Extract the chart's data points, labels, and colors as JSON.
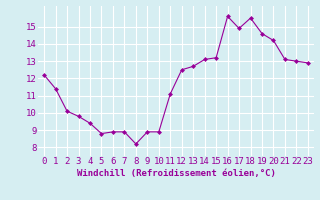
{
  "x": [
    0,
    1,
    2,
    3,
    4,
    5,
    6,
    7,
    8,
    9,
    10,
    11,
    12,
    13,
    14,
    15,
    16,
    17,
    18,
    19,
    20,
    21,
    22,
    23
  ],
  "y": [
    12.2,
    11.4,
    10.1,
    9.8,
    9.4,
    8.8,
    8.9,
    8.9,
    8.2,
    8.9,
    8.9,
    11.1,
    12.5,
    12.7,
    13.1,
    13.2,
    15.6,
    14.9,
    15.5,
    14.6,
    14.2,
    13.1,
    13.0,
    12.9
  ],
  "line_color": "#990099",
  "marker": "D",
  "marker_size": 2,
  "bg_color": "#d6eef2",
  "grid_color": "#ffffff",
  "xlabel": "Windchill (Refroidissement éolien,°C)",
  "xlabel_color": "#990099",
  "xlabel_fontsize": 6.5,
  "tick_label_color": "#990099",
  "tick_fontsize": 6.5,
  "ylim": [
    7.5,
    16.2
  ],
  "yticks": [
    8,
    9,
    10,
    11,
    12,
    13,
    14,
    15
  ],
  "xticks": [
    0,
    1,
    2,
    3,
    4,
    5,
    6,
    7,
    8,
    9,
    10,
    11,
    12,
    13,
    14,
    15,
    16,
    17,
    18,
    19,
    20,
    21,
    22,
    23
  ]
}
